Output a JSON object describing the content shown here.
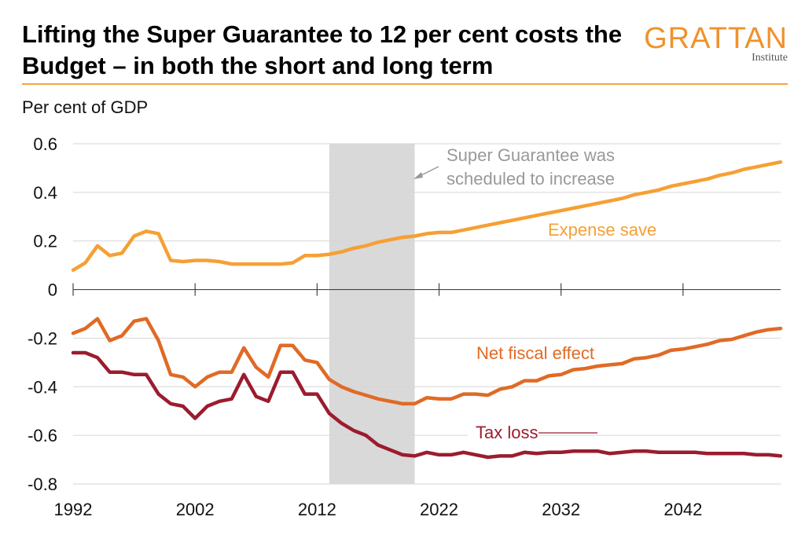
{
  "header": {
    "title": "Lifting the Super Guarantee to 12 per cent costs the Budget – in both the short and long term",
    "brand_name": "GRATTAN",
    "brand_sub": "Institute"
  },
  "colors": {
    "expense_save": "#f5a035",
    "net_fiscal": "#e06a25",
    "tax_loss": "#9b1c2e",
    "shade": "#d9d9d9",
    "annotation_gray": "#999999",
    "brand": "#f0912c"
  },
  "chart_data": {
    "type": "line",
    "ylabel": "Per cent of GDP",
    "ylim": [
      -0.8,
      0.6
    ],
    "xlim": [
      1992,
      2050
    ],
    "yticks": [
      "0.6",
      "0.4",
      "0.2",
      "0",
      "-0.2",
      "-0.4",
      "-0.6",
      "-0.8"
    ],
    "ytick_values": [
      0.6,
      0.4,
      0.2,
      0,
      -0.2,
      -0.4,
      -0.6,
      -0.8
    ],
    "xticks": [
      "1992",
      "2002",
      "2012",
      "2022",
      "2032",
      "2042"
    ],
    "xtick_values": [
      1992,
      2002,
      2012,
      2022,
      2032,
      2042
    ],
    "grid": true,
    "shaded_region": {
      "x_start": 2013,
      "x_end": 2020
    },
    "annotation": "Super Guarantee was scheduled to increase",
    "annotation_lines": [
      "Super Guarantee was",
      "scheduled to increase"
    ],
    "x": [
      1992,
      1993,
      1994,
      1995,
      1996,
      1997,
      1998,
      1999,
      2000,
      2001,
      2002,
      2003,
      2004,
      2005,
      2006,
      2007,
      2008,
      2009,
      2010,
      2011,
      2012,
      2013,
      2014,
      2015,
      2016,
      2017,
      2018,
      2019,
      2020,
      2021,
      2022,
      2023,
      2024,
      2025,
      2026,
      2027,
      2028,
      2029,
      2030,
      2031,
      2032,
      2033,
      2034,
      2035,
      2036,
      2037,
      2038,
      2039,
      2040,
      2041,
      2042,
      2043,
      2044,
      2045,
      2046,
      2047,
      2048,
      2049,
      2050
    ],
    "series": [
      {
        "name": "Expense save",
        "values": [
          0.08,
          0.11,
          0.18,
          0.14,
          0.15,
          0.22,
          0.24,
          0.23,
          0.12,
          0.115,
          0.12,
          0.12,
          0.115,
          0.105,
          0.105,
          0.105,
          0.105,
          0.105,
          0.11,
          0.14,
          0.14,
          0.145,
          0.155,
          0.17,
          0.18,
          0.195,
          0.205,
          0.215,
          0.22,
          0.23,
          0.235,
          0.235,
          0.245,
          0.255,
          0.265,
          0.275,
          0.285,
          0.295,
          0.305,
          0.315,
          0.325,
          0.335,
          0.345,
          0.355,
          0.365,
          0.375,
          0.39,
          0.4,
          0.41,
          0.425,
          0.435,
          0.445,
          0.455,
          0.47,
          0.48,
          0.495,
          0.505,
          0.515,
          0.525
        ]
      },
      {
        "name": "Net fiscal effect",
        "values": [
          -0.18,
          -0.16,
          -0.12,
          -0.21,
          -0.19,
          -0.13,
          -0.12,
          -0.21,
          -0.35,
          -0.36,
          -0.4,
          -0.36,
          -0.34,
          -0.34,
          -0.24,
          -0.32,
          -0.36,
          -0.23,
          -0.23,
          -0.29,
          -0.3,
          -0.37,
          -0.4,
          -0.42,
          -0.435,
          -0.45,
          -0.46,
          -0.47,
          -0.47,
          -0.445,
          -0.45,
          -0.45,
          -0.43,
          -0.43,
          -0.435,
          -0.41,
          -0.4,
          -0.375,
          -0.375,
          -0.355,
          -0.35,
          -0.33,
          -0.325,
          -0.315,
          -0.31,
          -0.305,
          -0.285,
          -0.28,
          -0.27,
          -0.25,
          -0.245,
          -0.235,
          -0.225,
          -0.21,
          -0.205,
          -0.19,
          -0.175,
          -0.165,
          -0.16
        ]
      },
      {
        "name": "Tax loss",
        "values": [
          -0.26,
          -0.26,
          -0.28,
          -0.34,
          -0.34,
          -0.35,
          -0.35,
          -0.43,
          -0.47,
          -0.48,
          -0.53,
          -0.48,
          -0.46,
          -0.45,
          -0.35,
          -0.44,
          -0.46,
          -0.34,
          -0.34,
          -0.43,
          -0.43,
          -0.51,
          -0.55,
          -0.58,
          -0.6,
          -0.64,
          -0.66,
          -0.68,
          -0.685,
          -0.67,
          -0.68,
          -0.68,
          -0.67,
          -0.68,
          -0.69,
          -0.685,
          -0.685,
          -0.67,
          -0.675,
          -0.67,
          -0.67,
          -0.665,
          -0.665,
          -0.665,
          -0.675,
          -0.67,
          -0.665,
          -0.665,
          -0.67,
          -0.67,
          -0.67,
          -0.67,
          -0.675,
          -0.675,
          -0.675,
          -0.675,
          -0.68,
          -0.68,
          -0.685
        ]
      }
    ]
  }
}
